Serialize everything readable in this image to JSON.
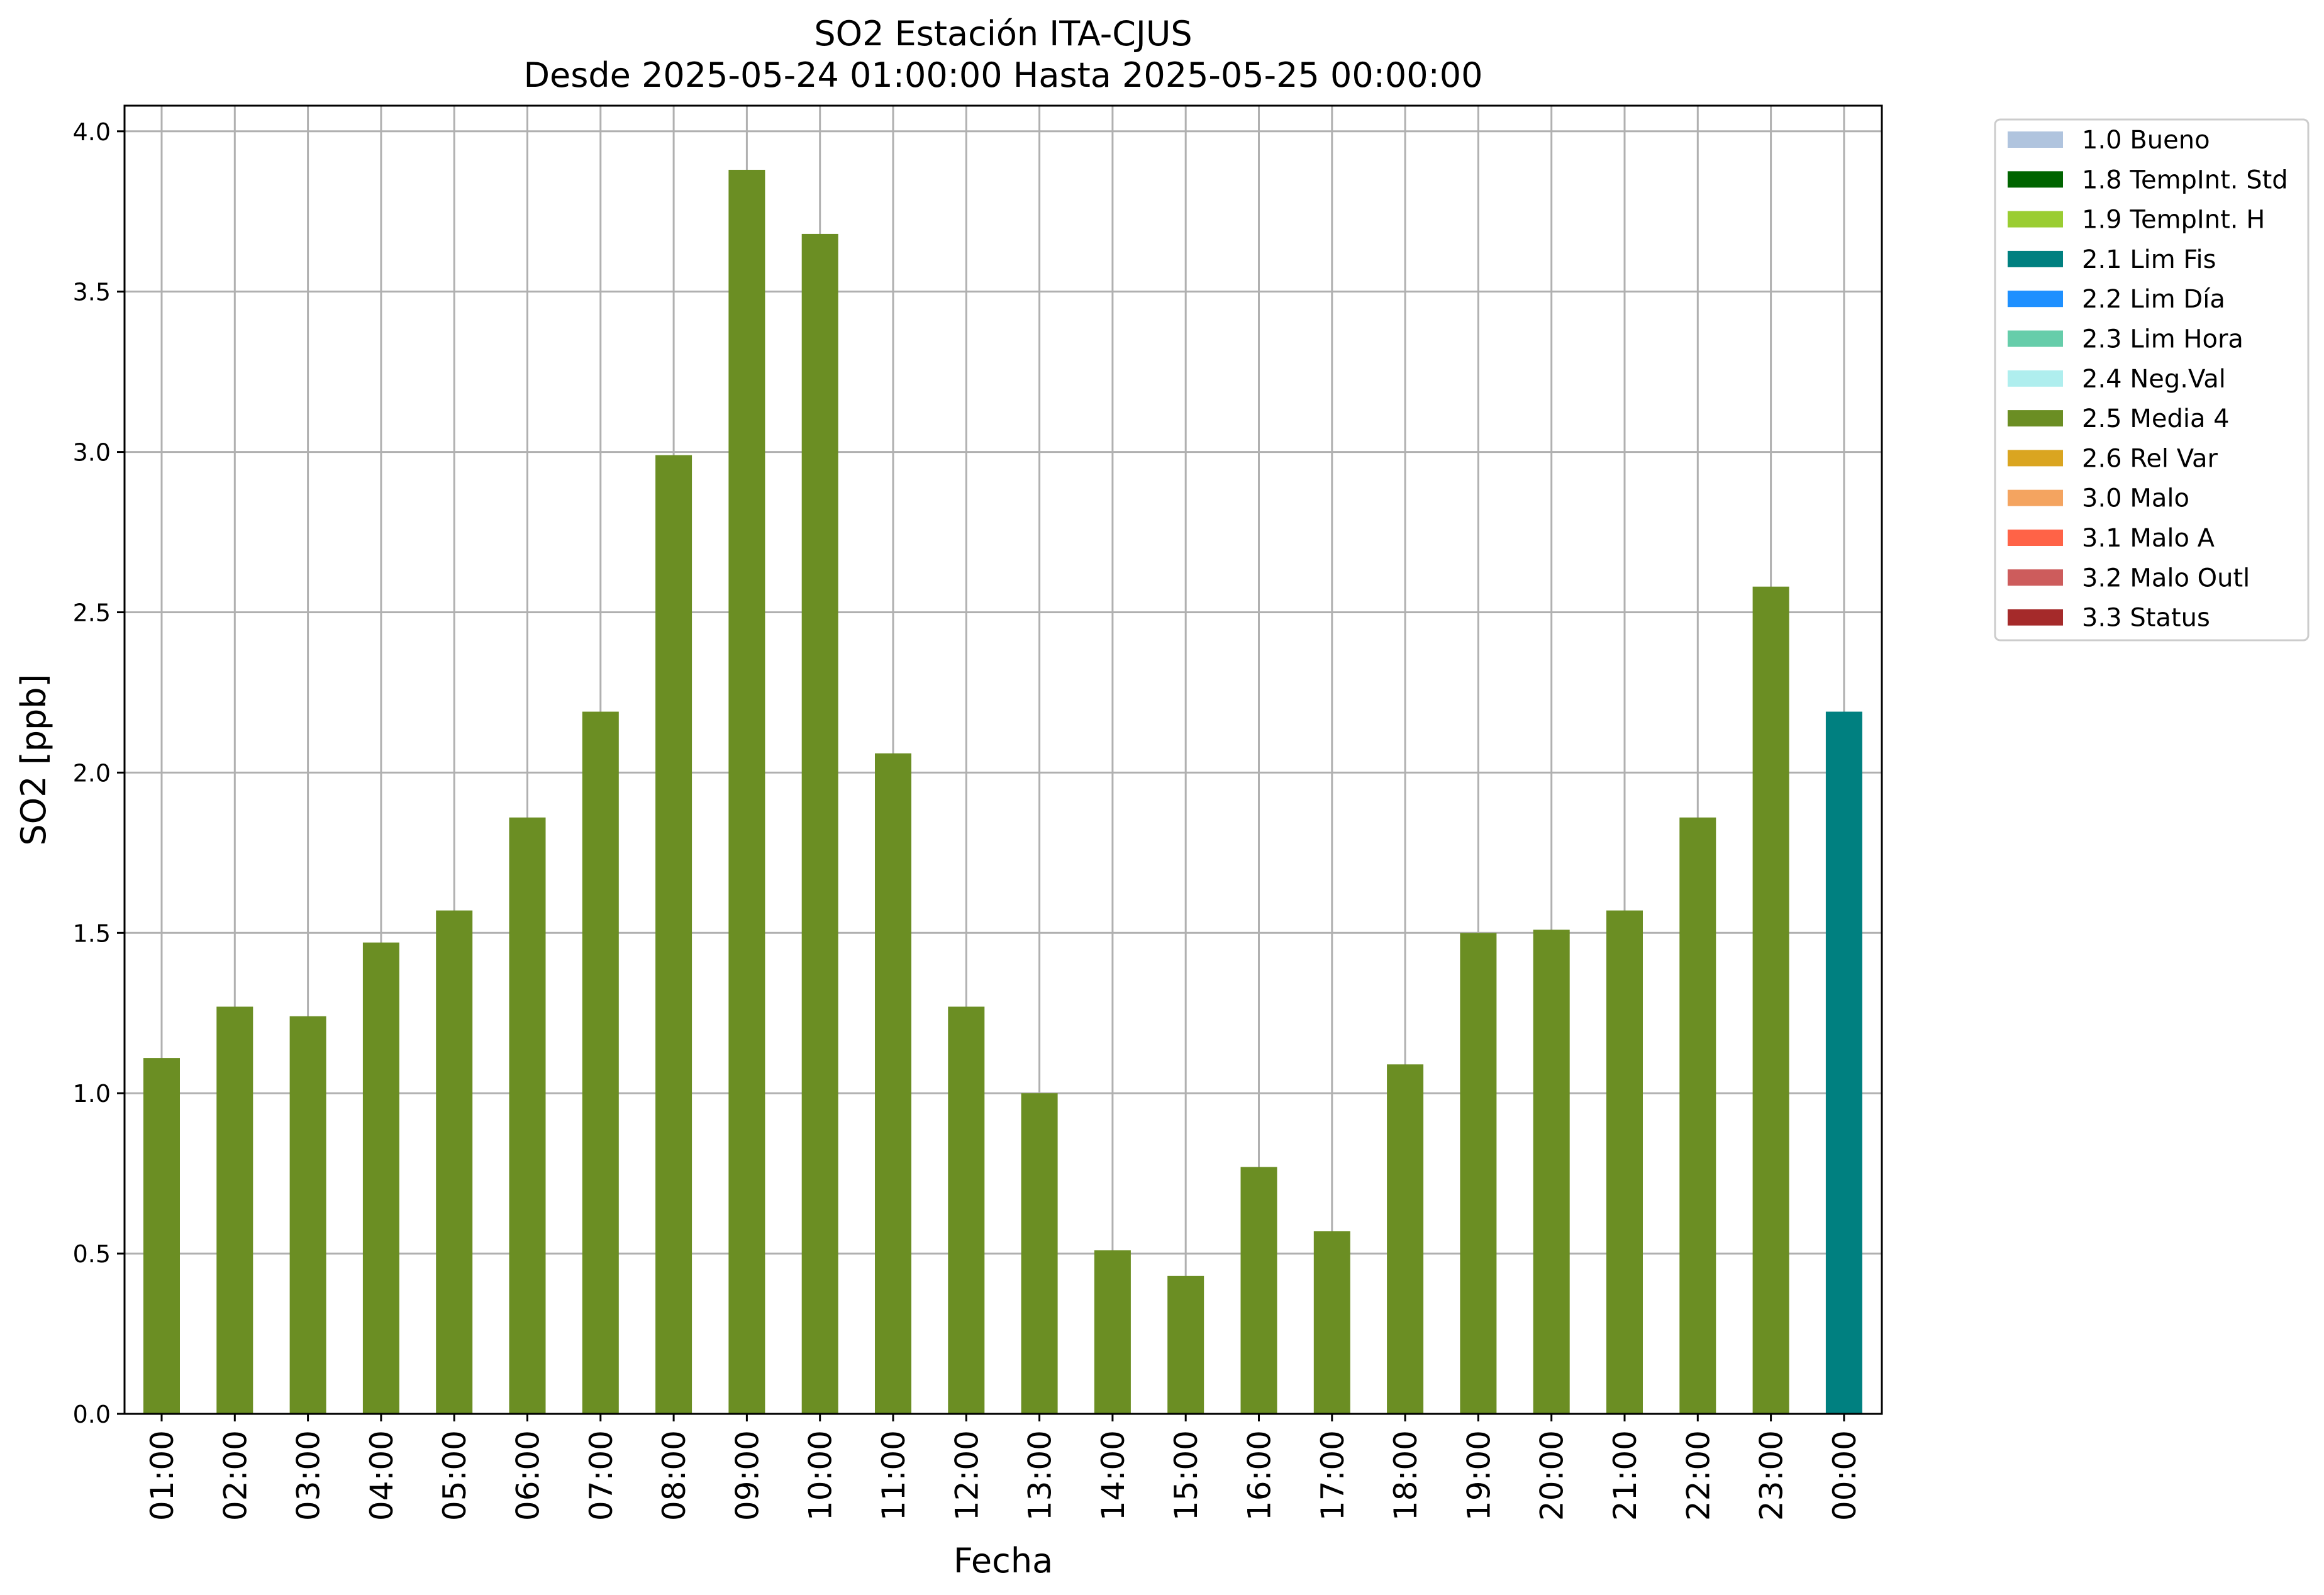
{
  "chart_data": {
    "type": "bar",
    "title": "SO2 Estación ITA-CJUS",
    "subtitle": "Desde 2025-05-24 01:00:00 Hasta 2025-05-25 00:00:00",
    "xlabel": "Fecha",
    "ylabel": "SO2 [ppb]",
    "ylim": [
      0,
      4.08
    ],
    "yticks": [
      0.0,
      0.5,
      1.0,
      1.5,
      2.0,
      2.5,
      3.0,
      3.5,
      4.0
    ],
    "ytick_labels": [
      "0.0",
      "0.5",
      "1.0",
      "1.5",
      "2.0",
      "2.5",
      "3.0",
      "3.5",
      "4.0"
    ],
    "grid": true,
    "legend_position": "outside-top-right",
    "categories": [
      "01:00",
      "02:00",
      "03:00",
      "04:00",
      "05:00",
      "06:00",
      "07:00",
      "08:00",
      "09:00",
      "10:00",
      "11:00",
      "12:00",
      "13:00",
      "14:00",
      "15:00",
      "16:00",
      "17:00",
      "18:00",
      "19:00",
      "20:00",
      "21:00",
      "22:00",
      "23:00",
      "00:00"
    ],
    "values": [
      1.11,
      1.27,
      1.24,
      1.47,
      1.57,
      1.86,
      2.19,
      2.99,
      3.88,
      3.68,
      2.06,
      1.27,
      1.0,
      0.51,
      0.43,
      0.77,
      0.57,
      1.09,
      1.5,
      1.51,
      1.57,
      1.86,
      2.58,
      2.19
    ],
    "bar_flags": [
      "2.5 Media 4",
      "2.5 Media 4",
      "2.5 Media 4",
      "2.5 Media 4",
      "2.5 Media 4",
      "2.5 Media 4",
      "2.5 Media 4",
      "2.5 Media 4",
      "2.5 Media 4",
      "2.5 Media 4",
      "2.5 Media 4",
      "2.5 Media 4",
      "2.5 Media 4",
      "2.5 Media 4",
      "2.5 Media 4",
      "2.5 Media 4",
      "2.5 Media 4",
      "2.5 Media 4",
      "2.5 Media 4",
      "2.5 Media 4",
      "2.5 Media 4",
      "2.5 Media 4",
      "2.5 Media 4",
      "2.1 Lim Fis"
    ],
    "legend": [
      {
        "label": "1.0 Bueno",
        "color": "#b0c4de"
      },
      {
        "label": "1.8 TempInt. Std",
        "color": "#006400"
      },
      {
        "label": "1.9 TempInt. H",
        "color": "#9acd32"
      },
      {
        "label": "2.1 Lim Fis",
        "color": "#008080"
      },
      {
        "label": "2.2 Lim Día",
        "color": "#1e90ff"
      },
      {
        "label": "2.3 Lim Hora",
        "color": "#66cdaa"
      },
      {
        "label": "2.4 Neg.Val",
        "color": "#afeeee"
      },
      {
        "label": "2.5 Media 4",
        "color": "#6b8e23"
      },
      {
        "label": "2.6 Rel Var",
        "color": "#daa520"
      },
      {
        "label": "3.0 Malo",
        "color": "#f4a460"
      },
      {
        "label": "3.1 Malo A",
        "color": "#ff6347"
      },
      {
        "label": "3.2 Malo Outl",
        "color": "#cd5c5c"
      },
      {
        "label": "3.3 Status",
        "color": "#a52a2a"
      }
    ]
  }
}
